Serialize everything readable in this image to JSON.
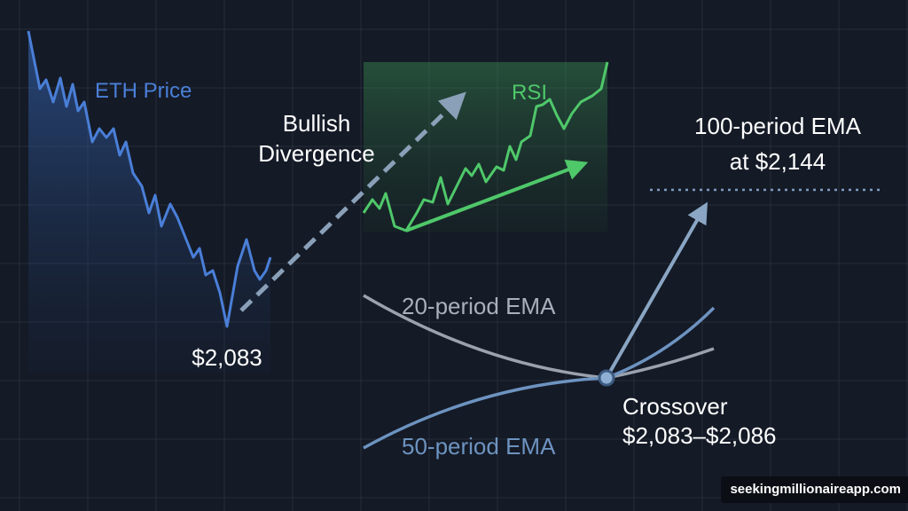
{
  "labels": {
    "eth_price": "ETH Price",
    "rsi": "RSI",
    "divergence_line1": "Bullish",
    "divergence_line2": "Divergence",
    "ema100_line1": "100-period EMA",
    "ema100_line2": "at $2,144",
    "low_price": "$2,083",
    "ema20": "20-period EMA",
    "ema50": "50-period EMA",
    "crossover_line1": "Crossover",
    "crossover_line2": "$2,083–$2,086"
  },
  "watermark": "seekingmillionaireapp.com",
  "colors": {
    "background": "#141a26",
    "grid": "#262d3a",
    "price": "#4a7fd8",
    "rsi": "#4fc86a",
    "ema20": "#9aa2ae",
    "ema50": "#6d93c0",
    "arrow": "#8aa0b8",
    "text": "#ffffff"
  }
}
